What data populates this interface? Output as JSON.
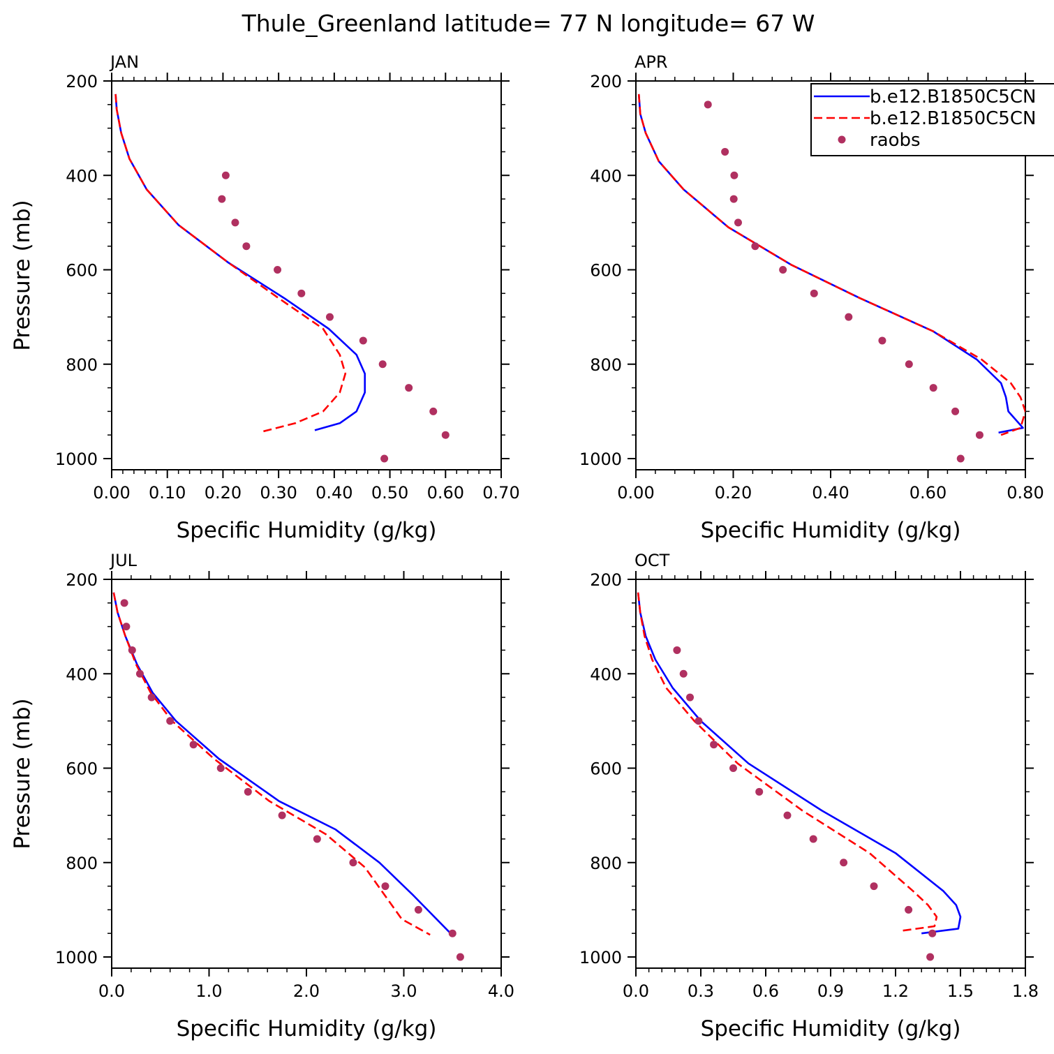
{
  "title": "Thule_Greenland  latitude= 77 N longitude= 67 W",
  "legend": {
    "placement": "top-right of APR panel",
    "entries": [
      {
        "label": "b.e12.B1850C5CN",
        "style": "solid",
        "color": "#0000ff"
      },
      {
        "label": "b.e12.B1850C5CN",
        "style": "dashed",
        "color": "#ff0000"
      },
      {
        "label": "raobs",
        "style": "dots",
        "color": "#b03060"
      }
    ]
  },
  "colors": {
    "model_solid": "#0000ff",
    "model_dashed": "#ff0000",
    "raobs": "#b03060"
  },
  "chart_data": [
    {
      "type": "line",
      "panel": "JAN",
      "xlabel": "Specific Humidity (g/kg)",
      "ylabel": "Pressure (mb)",
      "xlim": [
        0,
        0.7
      ],
      "ylim": [
        200,
        1000
      ],
      "y_inverted": true,
      "xticks": [
        0,
        0.1,
        0.2,
        0.3,
        0.4,
        0.5,
        0.6,
        0.7
      ],
      "xtick_labels": [
        "0.00",
        "0.10",
        "0.20",
        "0.30",
        "0.40",
        "0.50",
        "0.60",
        "0.70"
      ],
      "yticks": [
        200,
        400,
        600,
        800,
        1000
      ],
      "ytick_labels": [
        "200",
        "400",
        "600",
        "800",
        "1000"
      ],
      "series": [
        {
          "style": "solid",
          "color": "#0000ff",
          "x": [
            0.007,
            0.009,
            0.017,
            0.032,
            0.063,
            0.12,
            0.21,
            0.31,
            0.39,
            0.44,
            0.455,
            0.455,
            0.44,
            0.41,
            0.365
          ],
          "y": [
            228,
            260,
            310,
            365,
            430,
            505,
            585,
            660,
            725,
            780,
            820,
            860,
            900,
            925,
            940
          ]
        },
        {
          "style": "dashed",
          "color": "#ff0000",
          "x": [
            0.007,
            0.009,
            0.017,
            0.032,
            0.063,
            0.12,
            0.21,
            0.3,
            0.38,
            0.41,
            0.42,
            0.41,
            0.38,
            0.33,
            0.27
          ],
          "y": [
            228,
            260,
            310,
            365,
            430,
            505,
            585,
            660,
            725,
            780,
            820,
            860,
            900,
            925,
            943
          ]
        },
        {
          "style": "dots",
          "color": "#b03060",
          "x": [
            0.205,
            0.198,
            0.222,
            0.242,
            0.298,
            0.341,
            0.392,
            0.452,
            0.487,
            0.534,
            0.578,
            0.6,
            0.49
          ],
          "y": [
            400,
            450,
            500,
            550,
            600,
            650,
            700,
            750,
            800,
            850,
            900,
            950,
            1000
          ]
        }
      ]
    },
    {
      "type": "line",
      "panel": "APR",
      "xlabel": "Specific Humidity (g/kg)",
      "ylabel": "",
      "xlim": [
        0,
        0.8
      ],
      "ylim": [
        200,
        1000
      ],
      "y_inverted": true,
      "xticks": [
        0,
        0.2,
        0.4,
        0.6,
        0.8
      ],
      "xtick_labels": [
        "0.00",
        "0.20",
        "0.40",
        "0.60",
        "0.80"
      ],
      "yticks": [
        200,
        400,
        600,
        800,
        1000
      ],
      "ytick_labels": [
        "200",
        "400",
        "600",
        "800",
        "1000"
      ],
      "series": [
        {
          "style": "solid",
          "color": "#0000ff",
          "x": [
            0.006,
            0.009,
            0.02,
            0.047,
            0.098,
            0.19,
            0.32,
            0.46,
            0.61,
            0.7,
            0.75,
            0.76,
            0.765,
            0.795,
            0.745
          ],
          "y": [
            228,
            270,
            310,
            370,
            430,
            510,
            590,
            660,
            730,
            790,
            840,
            870,
            900,
            935,
            945
          ]
        },
        {
          "style": "dashed",
          "color": "#ff0000",
          "x": [
            0.006,
            0.009,
            0.02,
            0.047,
            0.098,
            0.19,
            0.32,
            0.46,
            0.61,
            0.71,
            0.77,
            0.79,
            0.8,
            0.79,
            0.75
          ],
          "y": [
            228,
            270,
            310,
            370,
            430,
            510,
            590,
            660,
            730,
            790,
            840,
            870,
            900,
            935,
            950
          ]
        },
        {
          "style": "dots",
          "color": "#b03060",
          "x": [
            0.148,
            0.183,
            0.202,
            0.201,
            0.21,
            0.245,
            0.302,
            0.366,
            0.437,
            0.506,
            0.561,
            0.611,
            0.656,
            0.706,
            0.667
          ],
          "y": [
            250,
            350,
            400,
            450,
            500,
            550,
            600,
            650,
            700,
            750,
            800,
            850,
            900,
            950,
            1000
          ]
        }
      ]
    },
    {
      "type": "line",
      "panel": "JUL",
      "xlabel": "Specific Humidity (g/kg)",
      "ylabel": "Pressure (mb)",
      "xlim": [
        0,
        4.0
      ],
      "ylim": [
        200,
        1000
      ],
      "y_inverted": true,
      "xticks": [
        0,
        1,
        2,
        3,
        4
      ],
      "xtick_labels": [
        "0.0",
        "1.0",
        "2.0",
        "3.0",
        "4.0"
      ],
      "yticks": [
        200,
        400,
        600,
        800,
        1000
      ],
      "ytick_labels": [
        "200",
        "400",
        "600",
        "800",
        "1000"
      ],
      "series": [
        {
          "style": "solid",
          "color": "#0000ff",
          "x": [
            0.02,
            0.06,
            0.14,
            0.26,
            0.42,
            0.66,
            1.1,
            1.72,
            2.3,
            2.75,
            3.1,
            3.48
          ],
          "y": [
            228,
            270,
            320,
            380,
            440,
            500,
            580,
            670,
            730,
            800,
            870,
            950
          ]
        },
        {
          "style": "dashed",
          "color": "#ff0000",
          "x": [
            0.02,
            0.06,
            0.14,
            0.25,
            0.4,
            0.62,
            1.05,
            1.62,
            2.2,
            2.6,
            2.98,
            3.27
          ],
          "y": [
            228,
            270,
            320,
            380,
            440,
            500,
            580,
            670,
            740,
            810,
            920,
            953
          ]
        },
        {
          "style": "dots",
          "color": "#b03060",
          "x": [
            0.13,
            0.15,
            0.21,
            0.29,
            0.41,
            0.6,
            0.84,
            1.12,
            1.4,
            1.75,
            2.11,
            2.48,
            2.81,
            3.15,
            3.5,
            3.58
          ],
          "y": [
            250,
            300,
            350,
            400,
            450,
            500,
            550,
            600,
            650,
            700,
            750,
            800,
            850,
            900,
            950,
            1000
          ]
        }
      ]
    },
    {
      "type": "line",
      "panel": "OCT",
      "xlabel": "Specific Humidity (g/kg)",
      "ylabel": "",
      "xlim": [
        0,
        1.8
      ],
      "ylim": [
        200,
        1000
      ],
      "y_inverted": true,
      "xticks": [
        0,
        0.3,
        0.6,
        0.9,
        1.2,
        1.5,
        1.8
      ],
      "xtick_labels": [
        "0.0",
        "0.3",
        "0.6",
        "0.9",
        "1.2",
        "1.5",
        "1.8"
      ],
      "yticks": [
        200,
        400,
        600,
        800,
        1000
      ],
      "ytick_labels": [
        "200",
        "400",
        "600",
        "800",
        "1000"
      ],
      "series": [
        {
          "style": "solid",
          "color": "#0000ff",
          "x": [
            0.01,
            0.02,
            0.045,
            0.09,
            0.17,
            0.3,
            0.52,
            0.86,
            1.2,
            1.42,
            1.48,
            1.5,
            1.49,
            1.32
          ],
          "y": [
            228,
            270,
            320,
            370,
            430,
            500,
            590,
            690,
            780,
            860,
            890,
            915,
            940,
            950
          ]
        },
        {
          "style": "dashed",
          "color": "#ff0000",
          "x": [
            0.01,
            0.02,
            0.04,
            0.075,
            0.14,
            0.27,
            0.47,
            0.77,
            1.08,
            1.28,
            1.35,
            1.39,
            1.38,
            1.22
          ],
          "y": [
            228,
            270,
            320,
            370,
            430,
            500,
            590,
            690,
            780,
            860,
            890,
            915,
            935,
            945
          ]
        },
        {
          "style": "dots",
          "color": "#b03060",
          "x": [
            0.19,
            0.22,
            0.25,
            0.29,
            0.36,
            0.45,
            0.57,
            0.7,
            0.82,
            0.96,
            1.1,
            1.26,
            1.37,
            1.36
          ],
          "y": [
            350,
            400,
            450,
            500,
            550,
            600,
            650,
            700,
            750,
            800,
            850,
            900,
            950,
            1000
          ]
        }
      ]
    }
  ]
}
